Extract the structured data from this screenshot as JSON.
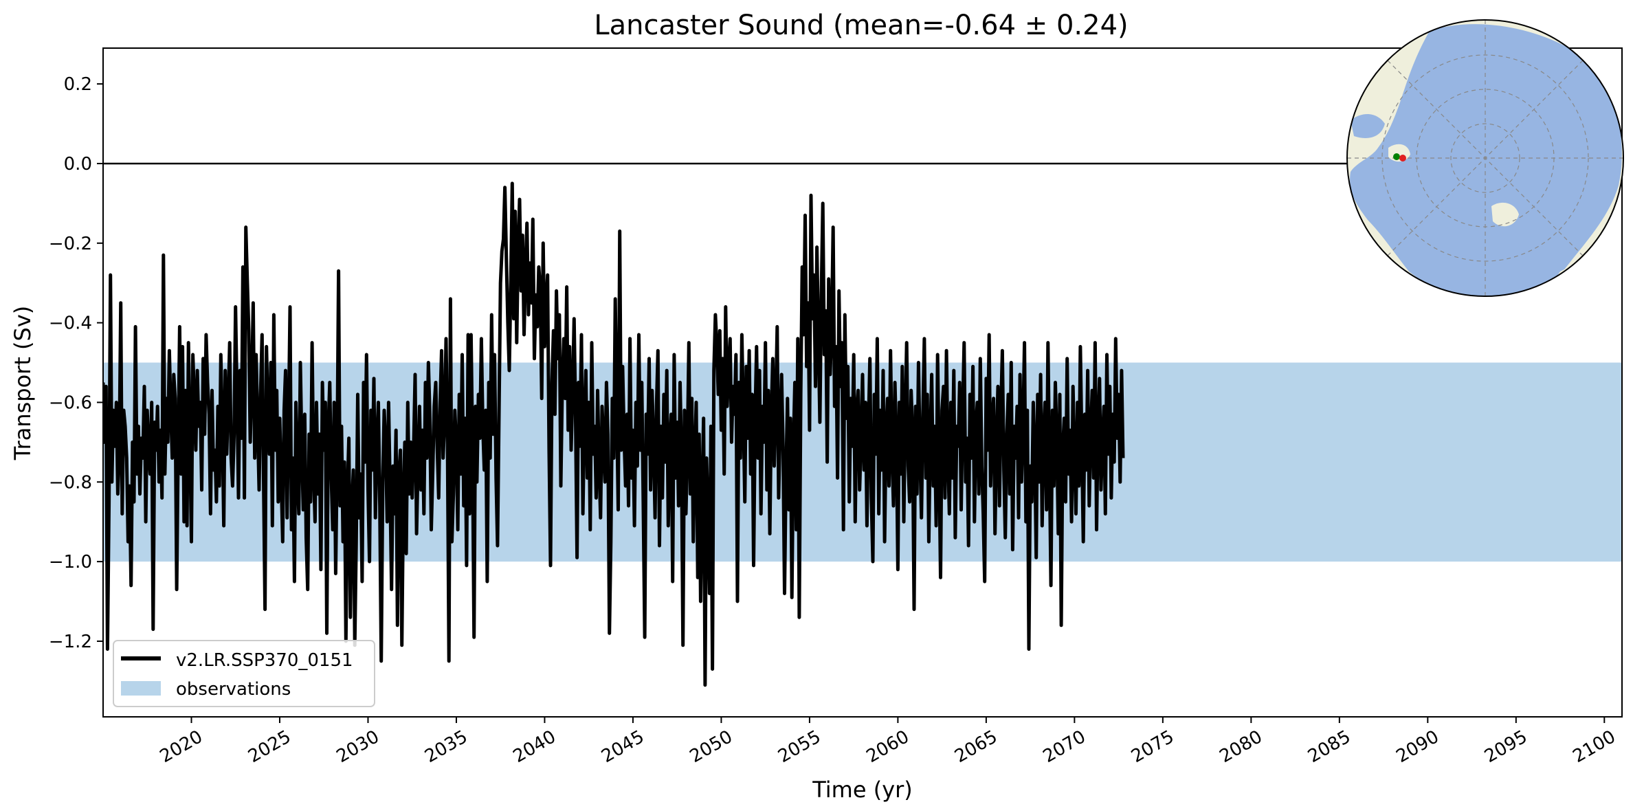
{
  "chart_data": {
    "type": "line",
    "title": "Lancaster Sound (mean=-0.64 ± 0.24)",
    "xlabel": "Time (yr)",
    "ylabel": "Transport (Sv)",
    "xlim": [
      2015.0,
      2101.0
    ],
    "ylim": [
      -1.39,
      0.29
    ],
    "xticks": [
      2020,
      2025,
      2030,
      2035,
      2040,
      2045,
      2050,
      2055,
      2060,
      2065,
      2070,
      2075,
      2080,
      2085,
      2090,
      2095,
      2100
    ],
    "xtick_labels": [
      "2020",
      "2025",
      "2030",
      "2035",
      "2040",
      "2045",
      "2050",
      "2055",
      "2060",
      "2065",
      "2070",
      "2075",
      "2080",
      "2085",
      "2090",
      "2095",
      "2100"
    ],
    "yticks": [
      0.2,
      0.0,
      -0.2,
      -0.4,
      -0.6,
      -0.8,
      -1.0,
      -1.2
    ],
    "ytick_labels": [
      "0.2",
      "0.0",
      "−0.2",
      "−0.4",
      "−0.6",
      "−0.8",
      "−1.0",
      "−1.2"
    ],
    "zero_line": 0.0,
    "observations_band": {
      "name": "observations",
      "low": -1.0,
      "high": -0.5,
      "color": "#b7d4ea"
    },
    "series": [
      {
        "name": "v2.LR.SSP370_0151",
        "color": "#000000",
        "x_start": 2015.0,
        "x_step": 0.0833333,
        "values": [
          -0.55,
          -0.7,
          -0.56,
          -1.22,
          -0.85,
          -0.28,
          -0.8,
          -0.62,
          -0.71,
          -0.6,
          -0.83,
          -0.72,
          -0.35,
          -0.88,
          -0.62,
          -0.66,
          -0.74,
          -0.95,
          -0.81,
          -1.06,
          -0.7,
          -0.85,
          -0.41,
          -0.78,
          -0.66,
          -0.83,
          -0.69,
          -0.74,
          -0.56,
          -0.9,
          -0.62,
          -0.72,
          -0.78,
          -0.6,
          -1.17,
          -0.65,
          -0.72,
          -0.61,
          -0.8,
          -0.67,
          -0.84,
          -0.23,
          -0.78,
          -0.59,
          -0.7,
          -0.47,
          -0.62,
          -0.74,
          -0.53,
          -0.59,
          -1.07,
          -0.72,
          -0.41,
          -0.78,
          -0.46,
          -0.9,
          -0.57,
          -0.91,
          -0.45,
          -0.68,
          -0.95,
          -0.48,
          -0.59,
          -0.72,
          -0.52,
          -0.66,
          -0.6,
          -0.82,
          -0.49,
          -0.68,
          -0.43,
          -0.55,
          -0.63,
          -0.88,
          -0.57,
          -0.77,
          -0.72,
          -0.85,
          -0.61,
          -0.81,
          -0.48,
          -0.66,
          -0.91,
          -0.52,
          -0.73,
          -0.6,
          -0.45,
          -0.74,
          -0.81,
          -0.68,
          -0.36,
          -0.59,
          -0.84,
          -0.52,
          -0.69,
          -0.26,
          -0.84,
          -0.16,
          -0.3,
          -0.42,
          -0.7,
          -0.55,
          -0.35,
          -0.74,
          -0.48,
          -0.66,
          -0.82,
          -0.58,
          -0.43,
          -0.78,
          -1.12,
          -0.46,
          -0.62,
          -0.73,
          -0.5,
          -0.91,
          -0.38,
          -0.72,
          -0.57,
          -0.85,
          -0.64,
          -0.79,
          -0.95,
          -0.62,
          -0.52,
          -0.89,
          -0.65,
          -0.36,
          -0.92,
          -0.74,
          -1.05,
          -0.6,
          -0.78,
          -0.88,
          -0.5,
          -0.71,
          -0.87,
          -0.63,
          -0.94,
          -1.07,
          -0.68,
          -0.85,
          -0.45,
          -0.77,
          -0.9,
          -0.6,
          -0.83,
          -0.68,
          -1.02,
          -0.55,
          -0.72,
          -0.6,
          -1.18,
          -0.67,
          -0.55,
          -0.78,
          -0.92,
          -0.6,
          -1.03,
          -0.74,
          -0.27,
          -0.86,
          -0.66,
          -0.95,
          -0.75,
          -1.2,
          -0.82,
          -0.69,
          -1.14,
          -0.86,
          -0.77,
          -1.21,
          -0.95,
          -0.58,
          -0.89,
          -0.78,
          -1.05,
          -0.55,
          -0.75,
          -0.48,
          -0.82,
          -1.0,
          -0.62,
          -0.77,
          -0.54,
          -0.89,
          -0.7,
          -0.6,
          -0.86,
          -1.25,
          -0.8,
          -0.62,
          -0.71,
          -0.9,
          -0.6,
          -0.82,
          -1.07,
          -0.76,
          -0.88,
          -0.67,
          -1.16,
          -0.78,
          -0.72,
          -1.21,
          -0.84,
          -0.7,
          -0.98,
          -0.6,
          -0.83,
          -0.7,
          -0.84,
          -0.71,
          -0.53,
          -0.93,
          -0.75,
          -0.61,
          -0.82,
          -0.67,
          -0.88,
          -0.55,
          -0.74,
          -0.5,
          -0.63,
          -0.92,
          -0.77,
          -0.61,
          -0.55,
          -0.71,
          -0.84,
          -0.6,
          -0.47,
          -0.74,
          -0.65,
          -0.44,
          -0.7,
          -1.25,
          -0.34,
          -0.95,
          -0.83,
          -0.62,
          -0.71,
          -0.92,
          -0.58,
          -0.78,
          -0.48,
          -0.86,
          -0.64,
          -1.01,
          -0.43,
          -0.88,
          -0.43,
          -0.71,
          -1.19,
          -0.61,
          -0.8,
          -0.58,
          -0.69,
          -0.44,
          -0.66,
          -0.77,
          -0.62,
          -1.05,
          -0.55,
          -0.74,
          -0.38,
          -0.68,
          -0.48,
          -0.79,
          -0.96,
          -0.62,
          -0.3,
          -0.22,
          -0.19,
          -0.06,
          -0.24,
          -0.4,
          -0.52,
          -0.3,
          -0.05,
          -0.39,
          -0.12,
          -0.45,
          -0.21,
          -0.09,
          -0.32,
          -0.18,
          -0.43,
          -0.27,
          -0.15,
          -0.38,
          -0.25,
          -0.35,
          -0.14,
          -0.49,
          -0.33,
          -0.41,
          -0.26,
          -0.31,
          -0.59,
          -0.2,
          -0.46,
          -0.35,
          -0.28,
          -0.72,
          -1.01,
          -0.55,
          -0.42,
          -0.63,
          -0.32,
          -0.49,
          -0.38,
          -0.81,
          -0.56,
          -0.44,
          -0.59,
          -0.31,
          -0.67,
          -0.46,
          -0.72,
          -0.58,
          -0.39,
          -0.63,
          -0.99,
          -0.55,
          -0.71,
          -0.43,
          -0.88,
          -0.64,
          -0.52,
          -0.79,
          -0.6,
          -0.92,
          -0.45,
          -0.73,
          -0.66,
          -0.84,
          -0.57,
          -0.76,
          -0.89,
          -0.61,
          -0.7,
          -0.8,
          -0.55,
          -0.68,
          -1.18,
          -0.95,
          -0.59,
          -0.74,
          -0.34,
          -0.62,
          -0.87,
          -0.17,
          -0.72,
          -0.51,
          -0.69,
          -0.81,
          -0.63,
          -0.86,
          -0.44,
          -0.79,
          -0.67,
          -0.91,
          -0.6,
          -0.76,
          -0.43,
          -0.72,
          -0.55,
          -0.85,
          -1.19,
          -0.63,
          -0.73,
          -0.49,
          -0.82,
          -0.57,
          -0.7,
          -0.89,
          -0.61,
          -0.47,
          -0.96,
          -0.66,
          -0.84,
          -0.58,
          -0.75,
          -0.52,
          -0.91,
          -0.7,
          -0.63,
          -1.05,
          -0.48,
          -0.79,
          -0.65,
          -0.86,
          -0.55,
          -0.74,
          -1.21,
          -0.62,
          -0.88,
          -0.71,
          -0.45,
          -0.83,
          -0.59,
          -0.95,
          -0.73,
          -0.6,
          -1.04,
          -0.68,
          -1.1,
          -0.82,
          -0.64,
          -1.31,
          -0.74,
          -0.88,
          -1.08,
          -0.66,
          -1.27,
          -0.52,
          -0.38,
          -0.46,
          -0.58,
          -0.42,
          -0.67,
          -0.49,
          -0.78,
          -0.36,
          -0.61,
          -0.52,
          -0.44,
          -0.7,
          -0.56,
          -0.63,
          -0.48,
          -1.1,
          -0.55,
          -0.74,
          -0.43,
          -0.62,
          -0.85,
          -0.51,
          -0.69,
          -0.47,
          -0.78,
          -0.58,
          -1.01,
          -0.64,
          -0.46,
          -0.74,
          -0.52,
          -0.88,
          -0.61,
          -0.7,
          -0.45,
          -0.82,
          -0.57,
          -0.93,
          -0.63,
          -0.49,
          -0.76,
          -0.6,
          -0.41,
          -0.84,
          -0.66,
          -0.53,
          -0.72,
          -1.08,
          -0.78,
          -0.59,
          -0.87,
          -0.64,
          -1.09,
          -0.71,
          -0.55,
          -0.92,
          -0.44,
          -1.14,
          -0.58,
          -0.26,
          -0.43,
          -0.13,
          -0.51,
          -0.35,
          -0.67,
          -0.08,
          -0.39,
          -0.28,
          -0.56,
          -0.21,
          -0.44,
          -0.65,
          -0.33,
          -0.1,
          -0.48,
          -0.37,
          -0.75,
          -0.29,
          -0.53,
          -0.42,
          -0.16,
          -0.61,
          -0.46,
          -0.79,
          -0.32,
          -0.56,
          -0.45,
          -0.92,
          -0.38,
          -0.64,
          -0.51,
          -0.85,
          -0.59,
          -0.71,
          -0.48,
          -0.9,
          -0.62,
          -0.57,
          -0.82,
          -0.69,
          -0.53,
          -0.77,
          -0.6,
          -0.91,
          -0.66,
          -0.49,
          -0.84,
          -1.0,
          -0.58,
          -0.73,
          -0.44,
          -0.88,
          -0.62,
          -0.77,
          -0.52,
          -0.95,
          -0.67,
          -0.59,
          -0.81,
          -0.47,
          -0.72,
          -0.86,
          -0.55,
          -0.7,
          -1.02,
          -0.6,
          -0.78,
          -0.51,
          -0.9,
          -0.64,
          -0.45,
          -0.76,
          -0.85,
          -0.57,
          -0.68,
          -1.12,
          -0.61,
          -0.83,
          -0.5,
          -0.72,
          -0.89,
          -0.63,
          -0.44,
          -0.79,
          -0.58,
          -0.95,
          -0.69,
          -0.53,
          -0.81,
          -0.66,
          -0.91,
          -0.48,
          -0.75,
          -1.04,
          -0.62,
          -0.56,
          -0.84,
          -0.47,
          -0.73,
          -0.88,
          -0.6,
          -0.79,
          -0.52,
          -0.94,
          -0.66,
          -0.71,
          -0.55,
          -0.87,
          -0.63,
          -0.45,
          -0.8,
          -0.69,
          -0.96,
          -0.58,
          -0.74,
          -0.51,
          -0.9,
          -0.66,
          -0.6,
          -0.83,
          -0.49,
          -0.76,
          -0.88,
          -1.05,
          -0.54,
          -0.72,
          -0.43,
          -0.81,
          -0.65,
          -0.59,
          -0.93,
          -0.7,
          -0.56,
          -0.86,
          -0.62,
          -0.47,
          -0.77,
          -0.94,
          -0.68,
          -0.58,
          -0.83,
          -0.5,
          -0.97,
          -0.66,
          -0.74,
          -0.61,
          -0.89,
          -0.53,
          -0.8,
          -0.67,
          -0.45,
          -0.9,
          -0.62,
          -1.22,
          -0.76,
          -0.85,
          -0.6,
          -0.72,
          -0.99,
          -0.58,
          -0.8,
          -0.53,
          -0.91,
          -0.68,
          -0.6,
          -0.87,
          -0.45,
          -0.76,
          -1.06,
          -0.62,
          -0.81,
          -0.55,
          -0.7,
          -0.93,
          -0.58,
          -1.16,
          -0.72,
          -0.64,
          -0.85,
          -0.49,
          -0.78,
          -0.67,
          -0.9,
          -0.56,
          -0.74,
          -0.88,
          -0.6,
          -0.81,
          -0.46,
          -0.71,
          -0.95,
          -0.63,
          -0.77,
          -0.52,
          -0.86,
          -0.68,
          -0.57,
          -0.79,
          -0.45,
          -0.92,
          -0.66,
          -0.54,
          -0.82,
          -0.7,
          -0.61,
          -0.88,
          -0.48,
          -0.73,
          -0.56,
          -0.84,
          -0.63,
          -0.75,
          -0.44,
          -0.69,
          -0.58,
          -0.8,
          -0.52,
          -0.74
        ]
      }
    ],
    "legend": {
      "location": "lower-left",
      "entries": [
        {
          "label": "v2.LR.SSP370_0151",
          "kind": "line",
          "color": "#000000"
        },
        {
          "label": "observations",
          "kind": "patch",
          "color": "#b7d4ea"
        }
      ]
    },
    "inset_map": {
      "projection": "north-polar-stereographic",
      "location": "top-right",
      "ocean_color": "#97b5e2",
      "land_color": "#efefdc",
      "markers": [
        {
          "color": "#008000"
        },
        {
          "color": "#e02020"
        }
      ]
    }
  }
}
